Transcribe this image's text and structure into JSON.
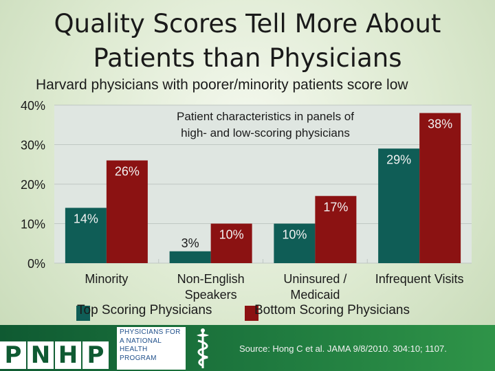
{
  "page": {
    "title_line1": "Quality Scores Tell More About",
    "title_line2": "Patients than Physicians",
    "subtitle": "Harvard physicians with poorer/minority patients score low"
  },
  "chart_data": {
    "type": "bar",
    "title": "Patient characteristics in panels of high- and low-scoring physicians",
    "title_lines": [
      "Patient characteristics in panels of",
      "high- and low-scoring physicians"
    ],
    "categories": [
      [
        "Minority"
      ],
      [
        "Non-English",
        "Speakers"
      ],
      [
        "Uninsured /",
        "Medicaid"
      ],
      [
        "Infrequent Visits"
      ]
    ],
    "series": [
      {
        "name": "Top Scoring Physicians",
        "values": [
          14,
          3,
          10,
          29
        ],
        "labels": [
          "14%",
          "3%",
          "10%",
          "29%"
        ],
        "color": "#0f5d56"
      },
      {
        "name": "Bottom Scoring Physicians",
        "values": [
          26,
          10,
          17,
          38
        ],
        "labels": [
          "26%",
          "10%",
          "17%",
          "38%"
        ],
        "color": "#8b1212"
      }
    ],
    "ylim": [
      0,
      40
    ],
    "yticks": [
      0,
      10,
      20,
      30,
      40
    ],
    "ytick_labels": [
      "0%",
      "10%",
      "20%",
      "30%",
      "40%"
    ],
    "grid": true,
    "legend_position": "bottom",
    "colors": {
      "top": "#0f5d56",
      "bottom": "#8b1212",
      "plot_bg": "#dfe6e1"
    }
  },
  "footer": {
    "logo_letters": [
      "P",
      "N",
      "H",
      "P"
    ],
    "org_lines": [
      "PHYSICIANS FOR",
      "A NATIONAL",
      "HEALTH",
      "PROGRAM"
    ],
    "source": "Source: Hong C et al. JAMA 9/8/2010. 304:10; 1107."
  }
}
